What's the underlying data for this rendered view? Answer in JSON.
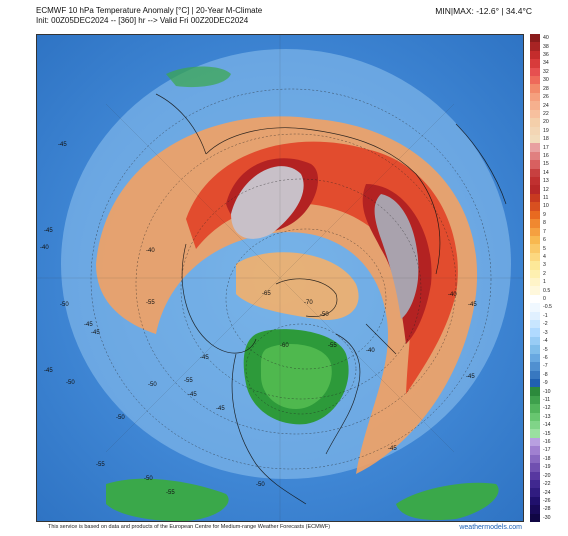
{
  "header": {
    "line1": "ECMWF 10 hPa Temperature Anomaly [°C] | 20-Year M-Climate",
    "line2": "Init: 00Z05DEC2024 -- [360] hr --> Valid Fri 00Z20DEC2024",
    "minmax": "MIN|MAX: -12.6° | 34.4°C"
  },
  "colorbar": {
    "labels": [
      "40",
      "38",
      "36",
      "34",
      "32",
      "30",
      "28",
      "26",
      "24",
      "22",
      "20",
      "19",
      "18",
      "17",
      "16",
      "15",
      "14",
      "13",
      "12",
      "11",
      "10",
      "9",
      "8",
      "7",
      "6",
      "5",
      "4",
      "3",
      "2",
      "1",
      "0.5",
      "0",
      "-0.5",
      "-1",
      "-2",
      "-3",
      "-4",
      "-5",
      "-6",
      "-7",
      "-8",
      "-9",
      "-10",
      "-11",
      "-12",
      "-13",
      "-14",
      "-15",
      "-16",
      "-17",
      "-18",
      "-19",
      "-20",
      "-22",
      "-24",
      "-26",
      "-28",
      "-30"
    ],
    "colors": [
      "#8a1c1c",
      "#a82424",
      "#c42c2c",
      "#d83b3b",
      "#e65050",
      "#ee6a5a",
      "#f28a6a",
      "#f5a07e",
      "#f6b08e",
      "#f7c09e",
      "#f4cfaa",
      "#f3d6b5",
      "#f2dcbc",
      "#e8a0a0",
      "#e08080",
      "#d86060",
      "#c74040",
      "#c03030",
      "#b82828",
      "#c83a20",
      "#d85020",
      "#e86a20",
      "#f08830",
      "#f5a040",
      "#f8b850",
      "#fac868",
      "#fcd880",
      "#fde898",
      "#fef0b0",
      "#fff4c8",
      "#fff8dc",
      "#ffffff",
      "#f0f8ff",
      "#e0f0ff",
      "#c8e6ff",
      "#b0daff",
      "#98ccf5",
      "#80bdea",
      "#68a8e0",
      "#5090d0",
      "#3878c0",
      "#2060b0",
      "#2c8a3c",
      "#3ea04c",
      "#52b45c",
      "#68c670",
      "#80d488",
      "#9ae0a0",
      "#b8a0e0",
      "#a080d0",
      "#8868c0",
      "#7050b0",
      "#5838a0",
      "#402890",
      "#301c80",
      "#20106c",
      "#180a58",
      "#100644"
    ]
  },
  "map_labels": [
    {
      "text": "-45"
    },
    {
      "text": "-45"
    },
    {
      "text": "-40"
    },
    {
      "text": "-50"
    },
    {
      "text": "-45"
    },
    {
      "text": "-55"
    },
    {
      "text": "-50"
    },
    {
      "text": "-45"
    },
    {
      "text": "-50"
    },
    {
      "text": "-45"
    },
    {
      "text": "-55"
    },
    {
      "text": "-45"
    },
    {
      "text": "-40"
    },
    {
      "text": "-45"
    },
    {
      "text": "-50"
    },
    {
      "text": "-65"
    },
    {
      "text": "-70"
    },
    {
      "text": "-50"
    },
    {
      "text": "-55"
    },
    {
      "text": "-60"
    },
    {
      "text": "-45"
    },
    {
      "text": "-40"
    },
    {
      "text": "-45"
    },
    {
      "text": "-45"
    },
    {
      "text": "-50"
    },
    {
      "text": "-55"
    },
    {
      "text": "-55"
    },
    {
      "text": "-50"
    },
    {
      "text": "-40"
    },
    {
      "text": "-45"
    }
  ],
  "footer": "This service is based on data and products of the European Centre for Medium-range Weather Forecasts (ECMWF)",
  "brand": "weathermodels.com"
}
